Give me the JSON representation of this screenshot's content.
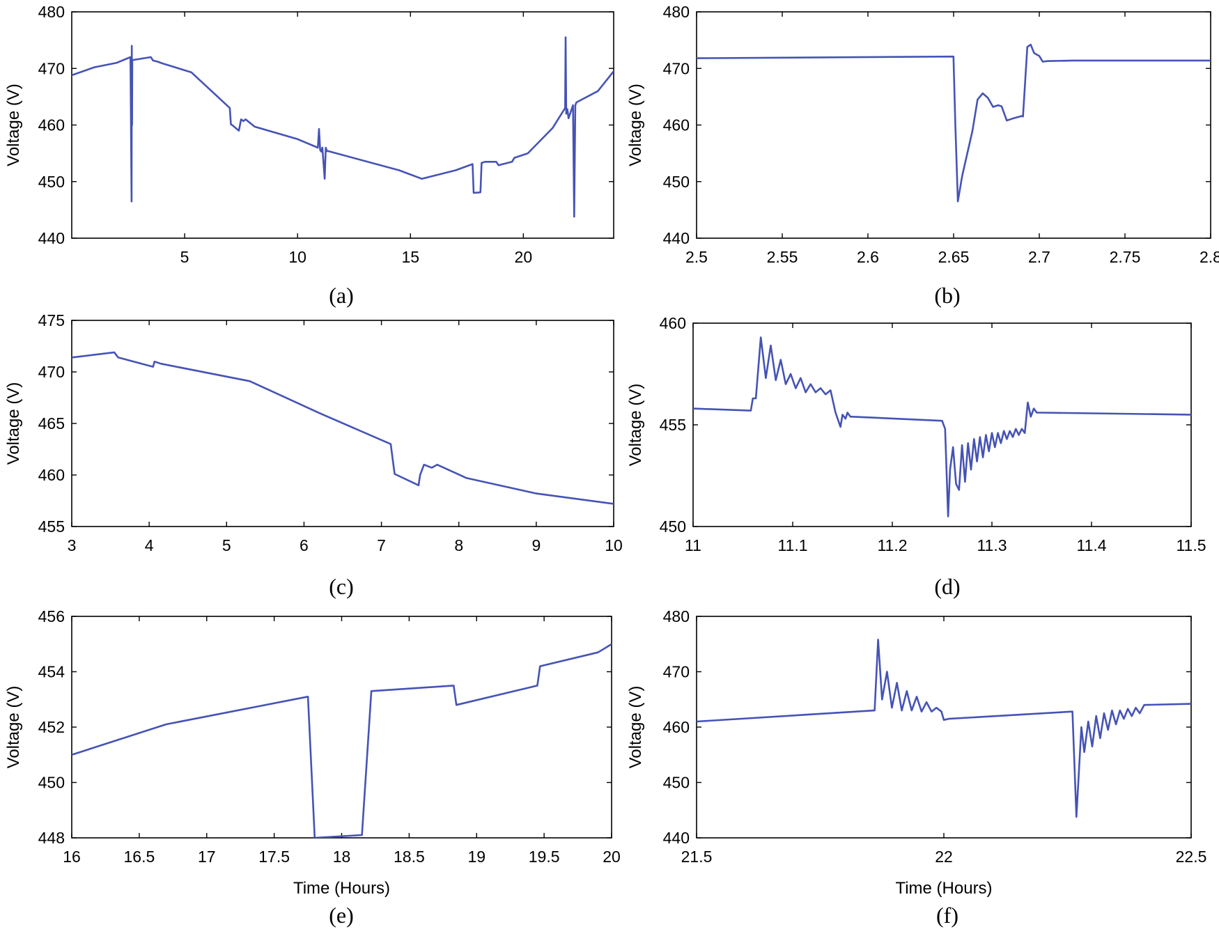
{
  "series_color": "#4553b5",
  "chart_data": [
    {
      "id": "a",
      "type": "line",
      "caption": "(a)",
      "ylabel": "Voltage (V)",
      "xlabel": "",
      "xlim": [
        0,
        24
      ],
      "ylim": [
        440,
        480
      ],
      "xticks": [
        5,
        10,
        15,
        20
      ],
      "yticks": [
        440,
        450,
        460,
        470,
        480
      ],
      "x": [
        0,
        1,
        2,
        2.6,
        2.65,
        2.66,
        2.67,
        2.68,
        2.72,
        3.5,
        3.6,
        3.8,
        4.0,
        5.3,
        7.0,
        7.05,
        7.1,
        7.4,
        7.5,
        7.6,
        7.7,
        8.1,
        10.0,
        10.9,
        10.95,
        11.0,
        11.05,
        11.1,
        11.2,
        11.25,
        11.3,
        11.35,
        14.5,
        15.5,
        17.0,
        17.75,
        17.8,
        18.1,
        18.15,
        18.3,
        18.8,
        18.9,
        19.5,
        19.6,
        20.2,
        21.3,
        21.85,
        21.87,
        21.9,
        21.95,
        22.0,
        22.2,
        22.25,
        22.3,
        22.35,
        23.3,
        24
      ],
      "series": [
        {
          "name": "Voltage",
          "values": [
            468.8,
            470.2,
            471.0,
            472.0,
            446.5,
            474.0,
            460.0,
            471.5,
            471.5,
            472.0,
            471.4,
            471.2,
            470.9,
            469.3,
            463.0,
            460.1,
            460.0,
            459.0,
            461.0,
            460.7,
            461.0,
            459.7,
            457.5,
            456.0,
            459.3,
            455.6,
            455.3,
            456.0,
            450.5,
            456.0,
            455.4,
            455.4,
            452.0,
            450.5,
            452.0,
            453.1,
            448.0,
            448.1,
            453.3,
            453.5,
            453.5,
            452.9,
            453.5,
            454.2,
            455.0,
            459.5,
            463.0,
            475.5,
            462.0,
            462.8,
            461.2,
            463.5,
            443.8,
            463.5,
            464.0,
            466.0,
            469.5
          ]
        }
      ]
    },
    {
      "id": "b",
      "type": "line",
      "caption": "(b)",
      "ylabel": "Voltage (V)",
      "xlabel": "",
      "xlim": [
        2.5,
        2.8
      ],
      "ylim": [
        440,
        480
      ],
      "xticks": [
        2.5,
        2.55,
        2.6,
        2.65,
        2.7,
        2.75,
        2.8
      ],
      "yticks": [
        440,
        450,
        460,
        470,
        480
      ],
      "x": [
        2.5,
        2.6499,
        2.651,
        2.6525,
        2.655,
        2.658,
        2.661,
        2.664,
        2.667,
        2.67,
        2.673,
        2.676,
        2.678,
        2.681,
        2.685,
        2.69,
        2.6905,
        2.693,
        2.695,
        2.697,
        2.7,
        2.702,
        2.705,
        2.72,
        2.8
      ],
      "series": [
        {
          "name": "Voltage",
          "values": [
            471.8,
            472.1,
            460.0,
            446.5,
            451.0,
            455.0,
            459.0,
            464.5,
            465.6,
            464.8,
            463.2,
            463.5,
            463.3,
            460.8,
            461.2,
            461.6,
            461.5,
            473.8,
            474.2,
            472.7,
            472.2,
            471.2,
            471.3,
            471.4,
            471.4
          ]
        }
      ]
    },
    {
      "id": "c",
      "type": "line",
      "caption": "(c)",
      "ylabel": "Voltage (V)",
      "xlabel": "",
      "xlim": [
        3,
        10
      ],
      "ylim": [
        455,
        475
      ],
      "xticks": [
        3,
        4,
        5,
        6,
        7,
        8,
        9,
        10
      ],
      "yticks": [
        455,
        460,
        465,
        470,
        475
      ],
      "x": [
        3,
        3.55,
        3.6,
        4.05,
        4.07,
        4.15,
        5.3,
        6.2,
        7.12,
        7.17,
        7.48,
        7.5,
        7.55,
        7.65,
        7.72,
        8.1,
        9.0,
        10
      ],
      "series": [
        {
          "name": "Voltage",
          "values": [
            471.4,
            471.9,
            471.4,
            470.5,
            471.0,
            470.8,
            469.1,
            466.0,
            463.0,
            460.1,
            459.0,
            460.0,
            461.0,
            460.7,
            461.0,
            459.7,
            458.2,
            457.2
          ]
        }
      ]
    },
    {
      "id": "d",
      "type": "line",
      "caption": "(d)",
      "ylabel": "Voltage (V)",
      "xlabel": "",
      "xlim": [
        11,
        11.5
      ],
      "ylim": [
        450,
        460
      ],
      "xticks": [
        11,
        11.1,
        11.2,
        11.3,
        11.4,
        11.5
      ],
      "yticks": [
        450,
        455,
        460
      ],
      "x": [
        11.0,
        11.058,
        11.06,
        11.063,
        11.068,
        11.073,
        11.078,
        11.083,
        11.088,
        11.093,
        11.098,
        11.103,
        11.108,
        11.113,
        11.118,
        11.123,
        11.128,
        11.133,
        11.138,
        11.143,
        11.148,
        11.15,
        11.153,
        11.155,
        11.158,
        11.16,
        11.25,
        11.253,
        11.256,
        11.258,
        11.261,
        11.264,
        11.267,
        11.27,
        11.273,
        11.276,
        11.279,
        11.282,
        11.285,
        11.288,
        11.291,
        11.294,
        11.297,
        11.3,
        11.303,
        11.306,
        11.309,
        11.312,
        11.315,
        11.318,
        11.321,
        11.324,
        11.327,
        11.33,
        11.333,
        11.336,
        11.339,
        11.342,
        11.345,
        11.348,
        11.35,
        11.5
      ],
      "series": [
        {
          "name": "Voltage",
          "values": [
            455.8,
            455.7,
            456.3,
            456.3,
            459.3,
            457.3,
            458.9,
            457.2,
            458.2,
            457.0,
            457.5,
            456.8,
            457.3,
            456.6,
            457.0,
            456.6,
            456.8,
            456.5,
            456.7,
            455.6,
            454.9,
            455.5,
            455.3,
            455.6,
            455.4,
            455.4,
            455.2,
            454.8,
            450.5,
            452.8,
            453.9,
            452.1,
            451.8,
            454.0,
            452.2,
            454.1,
            452.8,
            454.3,
            453.2,
            454.4,
            453.4,
            454.5,
            453.7,
            454.6,
            453.9,
            454.6,
            454.1,
            454.7,
            454.3,
            454.7,
            454.4,
            454.8,
            454.5,
            454.8,
            454.6,
            456.1,
            455.4,
            455.8,
            455.6,
            455.6,
            455.6,
            455.5
          ]
        }
      ]
    },
    {
      "id": "e",
      "type": "line",
      "caption": "(e)",
      "ylabel": "Voltage (V)",
      "xlabel": "Time (Hours)",
      "xlim": [
        16,
        20
      ],
      "ylim": [
        448,
        456
      ],
      "xticks": [
        16,
        16.5,
        17,
        17.5,
        18,
        18.5,
        19,
        19.5,
        20
      ],
      "yticks": [
        448,
        450,
        452,
        454,
        456
      ],
      "x": [
        16,
        16.7,
        17.75,
        17.8,
        18.15,
        18.22,
        18.83,
        18.85,
        19.45,
        19.47,
        19.9,
        20
      ],
      "series": [
        {
          "name": "Voltage",
          "values": [
            451.0,
            452.1,
            453.1,
            448.0,
            448.1,
            453.3,
            453.5,
            452.8,
            453.5,
            454.2,
            454.7,
            455.0
          ]
        }
      ]
    },
    {
      "id": "f",
      "type": "line",
      "caption": "(f)",
      "ylabel": "Voltage (V)",
      "xlabel": "Time (Hours)",
      "xlim": [
        21.5,
        22.5
      ],
      "ylim": [
        440,
        480
      ],
      "xticks": [
        21.5,
        22,
        22.5
      ],
      "yticks": [
        440,
        450,
        460,
        470,
        480
      ],
      "x": [
        21.5,
        21.86,
        21.867,
        21.875,
        21.885,
        21.895,
        21.905,
        21.915,
        21.925,
        21.935,
        21.945,
        21.955,
        21.965,
        21.975,
        21.985,
        21.995,
        22.0,
        22.01,
        22.26,
        22.268,
        22.278,
        22.284,
        22.292,
        22.3,
        22.308,
        22.316,
        22.324,
        22.332,
        22.34,
        22.348,
        22.356,
        22.364,
        22.372,
        22.38,
        22.388,
        22.396,
        22.405,
        22.5
      ],
      "series": [
        {
          "name": "Voltage",
          "values": [
            461.0,
            463.0,
            475.8,
            465.0,
            470.0,
            463.5,
            468.0,
            463.0,
            466.5,
            463.0,
            465.5,
            462.8,
            464.5,
            462.8,
            463.5,
            462.8,
            461.3,
            461.5,
            462.8,
            443.8,
            460.0,
            455.5,
            461.0,
            456.5,
            462.0,
            458.0,
            462.5,
            459.5,
            463.0,
            460.5,
            463.0,
            461.5,
            463.3,
            462.0,
            463.5,
            462.5,
            464.0,
            464.2
          ]
        }
      ]
    }
  ]
}
